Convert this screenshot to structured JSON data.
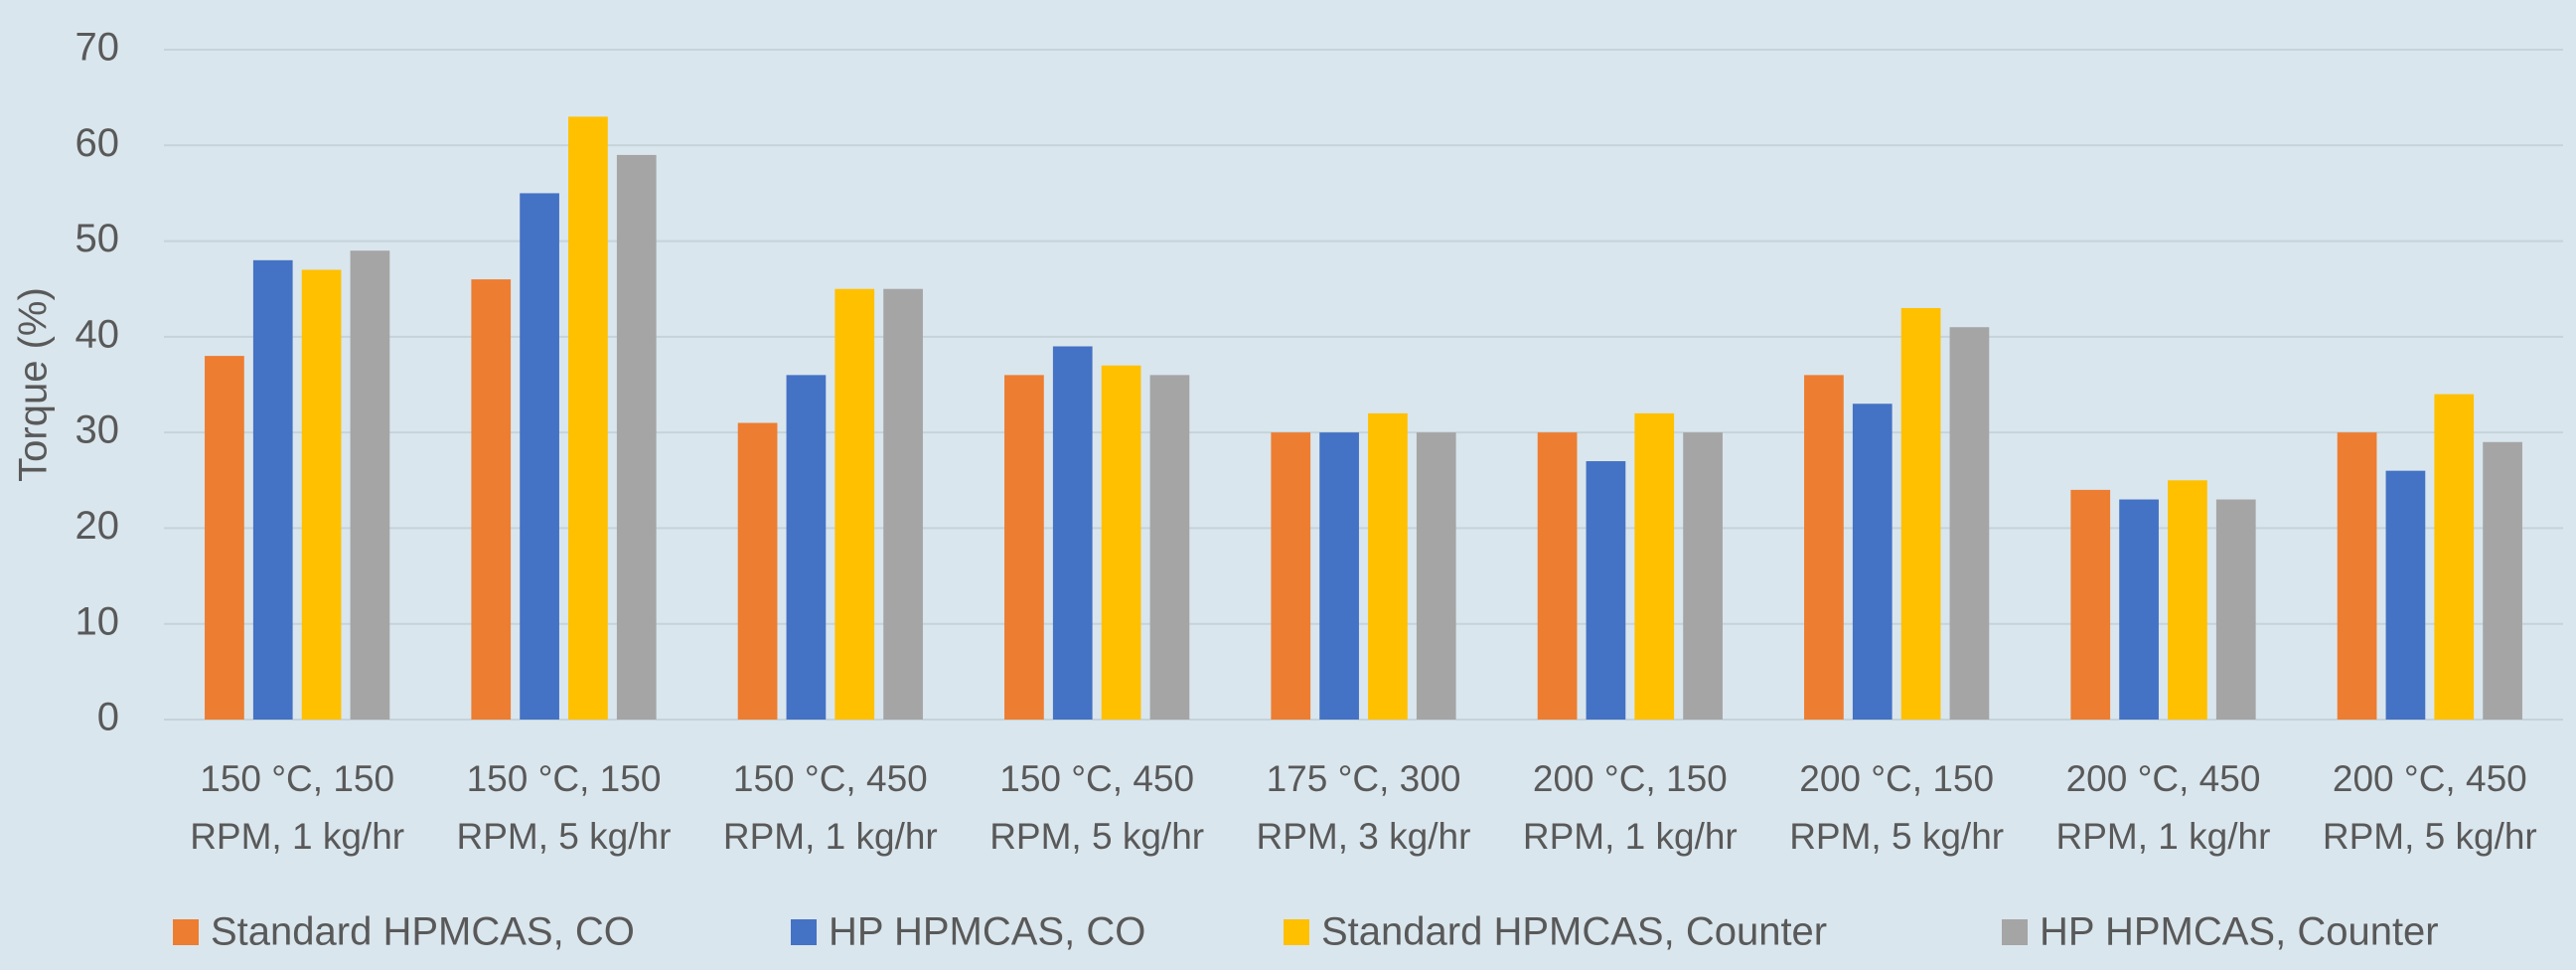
{
  "chart_data": {
    "type": "bar",
    "y_label": "Torque (%)",
    "categories": [
      "150 °C, 150 RPM, 1 kg/hr",
      "150 °C, 150 RPM, 5 kg/hr",
      "150 °C, 450 RPM, 1 kg/hr",
      "150 °C, 450 RPM, 5 kg/hr",
      "175 °C, 300 RPM, 3 kg/hr",
      "200 °C, 150 RPM, 1 kg/hr",
      "200 °C, 150 RPM, 5 kg/hr",
      "200 °C, 450 RPM, 1 kg/hr",
      "200 °C, 450 RPM, 5 kg/hr"
    ],
    "series": [
      {
        "name": "Standard HPMCAS, CO",
        "color": "#ed7d31",
        "values": [
          38,
          46,
          31,
          36,
          30,
          30,
          36,
          24,
          30
        ]
      },
      {
        "name": "HP HPMCAS, CO",
        "color": "#4472c4",
        "values": [
          48,
          55,
          36,
          39,
          30,
          27,
          33,
          23,
          26
        ]
      },
      {
        "name": "Standard HPMCAS, Counter",
        "color": "#ffc000",
        "values": [
          47,
          63,
          45,
          37,
          32,
          32,
          43,
          25,
          34
        ]
      },
      {
        "name": "HP HPMCAS, Counter",
        "color": "#a5a5a5",
        "values": [
          49,
          59,
          45,
          36,
          30,
          30,
          41,
          23,
          29
        ]
      }
    ],
    "ylim": [
      0,
      70
    ],
    "yticks": [
      0,
      10,
      20,
      30,
      40,
      50,
      60,
      70
    ],
    "grid": true,
    "legend": "bottom"
  }
}
